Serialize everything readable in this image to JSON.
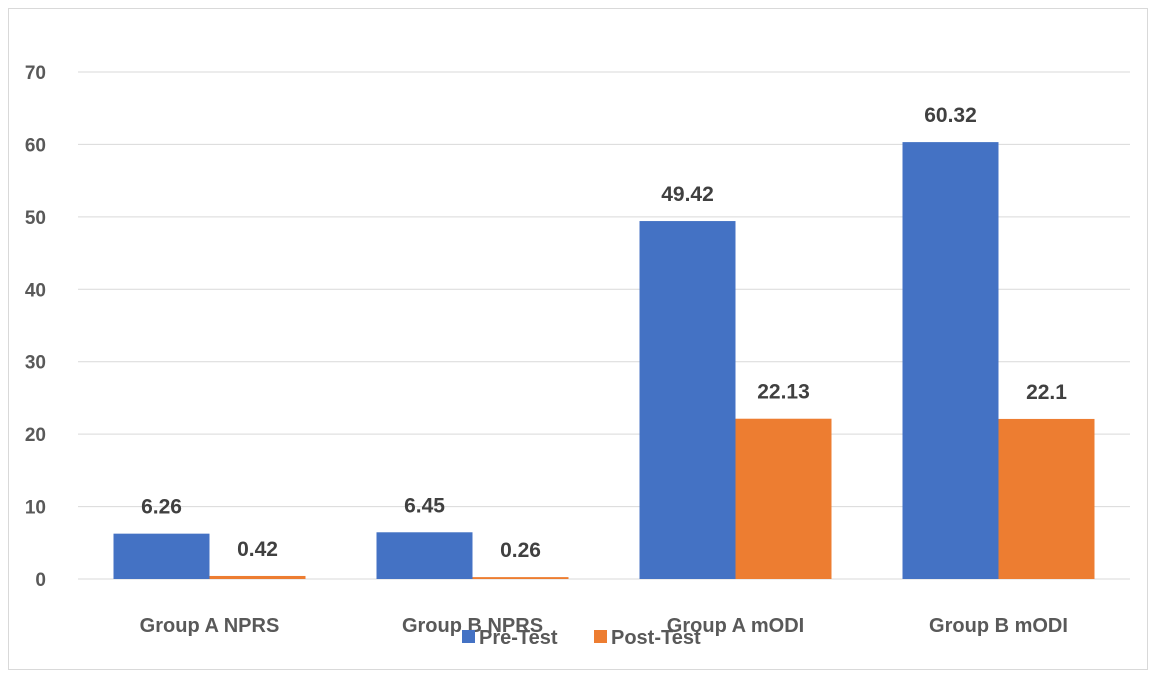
{
  "chart_data": {
    "type": "bar",
    "title": "",
    "xlabel": "",
    "ylabel": "",
    "categories": [
      "Group A NPRS",
      "Group B NPRS",
      "Group A mODI",
      "Group B mODI"
    ],
    "series": [
      {
        "name": "Pre-Test",
        "color": "#4472c4",
        "values": [
          6.26,
          6.45,
          49.42,
          60.32
        ],
        "labels": [
          "6.26",
          "6.45",
          "49.42",
          "60.32"
        ]
      },
      {
        "name": "Post-Test",
        "color": "#ed7d31",
        "values": [
          0.42,
          0.26,
          22.13,
          22.1
        ],
        "labels": [
          "0.42",
          "0.26",
          "22.13",
          "22.1"
        ]
      }
    ],
    "ylim": [
      0,
      70
    ],
    "yticks": [
      0,
      10,
      20,
      30,
      40,
      50,
      60,
      70
    ],
    "grid": true,
    "legend": "bottom-center"
  }
}
